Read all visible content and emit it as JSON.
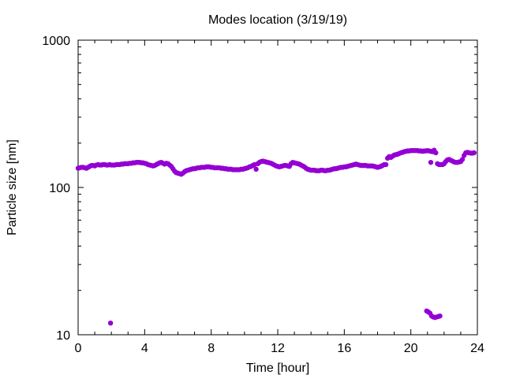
{
  "chart_data": {
    "type": "scatter",
    "title": "Modes location (3/19/19)",
    "xlabel": "Time [hour]",
    "ylabel": "Particle size [nm]",
    "xlim": [
      0,
      24
    ],
    "ylim": [
      10,
      1000
    ],
    "yscale": "log",
    "x_ticks": [
      0,
      4,
      8,
      12,
      16,
      20,
      24
    ],
    "y_ticks": [
      10,
      100,
      1000
    ],
    "x_tick_labels": [
      "0",
      "4",
      "8",
      "12",
      "16",
      "20",
      "24"
    ],
    "y_tick_labels": [
      "10",
      "100",
      "1000"
    ],
    "grid": false,
    "marker_color": "#9400d3",
    "series": [
      {
        "points": [
          [
            0.0,
            135
          ],
          [
            0.1,
            136
          ],
          [
            0.2,
            137
          ],
          [
            0.3,
            137
          ],
          [
            0.4,
            136
          ],
          [
            0.5,
            135
          ],
          [
            0.6,
            137
          ],
          [
            0.7,
            139
          ],
          [
            0.8,
            141
          ],
          [
            0.9,
            141
          ],
          [
            1.0,
            140
          ],
          [
            1.1,
            142
          ],
          [
            1.2,
            143
          ],
          [
            1.3,
            142
          ],
          [
            1.4,
            142
          ],
          [
            1.5,
            143
          ],
          [
            1.6,
            143
          ],
          [
            1.7,
            142
          ],
          [
            1.8,
            142
          ],
          [
            1.9,
            143
          ],
          [
            2.0,
            142
          ],
          [
            2.1,
            142
          ],
          [
            2.2,
            142
          ],
          [
            2.3,
            143
          ],
          [
            2.4,
            143
          ],
          [
            2.5,
            143
          ],
          [
            2.6,
            144
          ],
          [
            2.7,
            144
          ],
          [
            2.8,
            145
          ],
          [
            2.9,
            145
          ],
          [
            3.0,
            145
          ],
          [
            3.1,
            146
          ],
          [
            3.2,
            146
          ],
          [
            3.3,
            147
          ],
          [
            3.4,
            147
          ],
          [
            3.5,
            148
          ],
          [
            3.6,
            148
          ],
          [
            3.7,
            148
          ],
          [
            3.8,
            147
          ],
          [
            3.9,
            147
          ],
          [
            4.0,
            146
          ],
          [
            4.1,
            145
          ],
          [
            4.2,
            143
          ],
          [
            4.3,
            142
          ],
          [
            4.4,
            141
          ],
          [
            4.5,
            140
          ],
          [
            4.6,
            141
          ],
          [
            4.7,
            143
          ],
          [
            4.8,
            145
          ],
          [
            4.9,
            147
          ],
          [
            5.0,
            148
          ],
          [
            5.1,
            146
          ],
          [
            5.2,
            144
          ],
          [
            5.3,
            146
          ],
          [
            5.4,
            145
          ],
          [
            5.5,
            142
          ],
          [
            5.6,
            139
          ],
          [
            5.7,
            134
          ],
          [
            5.8,
            129
          ],
          [
            5.9,
            126
          ],
          [
            6.0,
            125
          ],
          [
            6.1,
            124
          ],
          [
            6.2,
            123
          ],
          [
            6.3,
            125
          ],
          [
            6.4,
            128
          ],
          [
            6.5,
            130
          ],
          [
            6.6,
            131
          ],
          [
            6.7,
            132
          ],
          [
            6.8,
            133
          ],
          [
            6.9,
            134
          ],
          [
            7.0,
            134
          ],
          [
            7.1,
            135
          ],
          [
            7.2,
            136
          ],
          [
            7.3,
            136
          ],
          [
            7.4,
            137
          ],
          [
            7.5,
            137
          ],
          [
            7.6,
            137
          ],
          [
            7.7,
            138
          ],
          [
            7.8,
            138
          ],
          [
            7.9,
            138
          ],
          [
            8.0,
            137
          ],
          [
            8.1,
            137
          ],
          [
            8.2,
            136
          ],
          [
            8.3,
            136
          ],
          [
            8.4,
            136
          ],
          [
            8.5,
            136
          ],
          [
            8.6,
            135
          ],
          [
            8.7,
            135
          ],
          [
            8.8,
            134
          ],
          [
            8.9,
            134
          ],
          [
            9.0,
            133
          ],
          [
            9.1,
            133
          ],
          [
            9.2,
            133
          ],
          [
            9.3,
            132
          ],
          [
            9.4,
            132
          ],
          [
            9.5,
            132
          ],
          [
            9.6,
            132
          ],
          [
            9.7,
            132
          ],
          [
            9.8,
            133
          ],
          [
            9.9,
            133
          ],
          [
            10.0,
            134
          ],
          [
            10.1,
            135
          ],
          [
            10.2,
            136
          ],
          [
            10.3,
            138
          ],
          [
            10.4,
            139
          ],
          [
            10.5,
            141
          ],
          [
            10.6,
            143
          ],
          [
            10.7,
            133
          ],
          [
            10.8,
            145
          ],
          [
            10.9,
            148
          ],
          [
            11.0,
            150
          ],
          [
            11.1,
            151
          ],
          [
            11.2,
            150
          ],
          [
            11.3,
            149
          ],
          [
            11.4,
            148
          ],
          [
            11.5,
            147
          ],
          [
            11.6,
            146
          ],
          [
            11.7,
            144
          ],
          [
            11.8,
            142
          ],
          [
            11.9,
            140
          ],
          [
            12.0,
            139
          ],
          [
            12.1,
            138
          ],
          [
            12.2,
            139
          ],
          [
            12.3,
            140
          ],
          [
            12.4,
            141
          ],
          [
            12.5,
            141
          ],
          [
            12.6,
            140
          ],
          [
            12.7,
            139
          ],
          [
            12.8,
            145
          ],
          [
            12.9,
            148
          ],
          [
            13.0,
            147
          ],
          [
            13.1,
            146
          ],
          [
            13.2,
            145
          ],
          [
            13.3,
            144
          ],
          [
            13.4,
            142
          ],
          [
            13.5,
            140
          ],
          [
            13.6,
            138
          ],
          [
            13.7,
            135
          ],
          [
            13.8,
            133
          ],
          [
            13.9,
            132
          ],
          [
            14.0,
            131
          ],
          [
            14.1,
            131
          ],
          [
            14.2,
            131
          ],
          [
            14.3,
            130
          ],
          [
            14.4,
            130
          ],
          [
            14.5,
            130
          ],
          [
            14.6,
            131
          ],
          [
            14.7,
            131
          ],
          [
            14.8,
            130
          ],
          [
            14.9,
            130
          ],
          [
            15.0,
            131
          ],
          [
            15.1,
            131
          ],
          [
            15.2,
            132
          ],
          [
            15.3,
            133
          ],
          [
            15.4,
            134
          ],
          [
            15.5,
            134
          ],
          [
            15.6,
            135
          ],
          [
            15.7,
            136
          ],
          [
            15.8,
            137
          ],
          [
            15.9,
            137
          ],
          [
            16.0,
            138
          ],
          [
            16.1,
            138
          ],
          [
            16.2,
            139
          ],
          [
            16.3,
            140
          ],
          [
            16.4,
            141
          ],
          [
            16.5,
            142
          ],
          [
            16.6,
            143
          ],
          [
            16.7,
            144
          ],
          [
            16.8,
            143
          ],
          [
            16.9,
            142
          ],
          [
            17.0,
            141
          ],
          [
            17.1,
            141
          ],
          [
            17.2,
            141
          ],
          [
            17.3,
            141
          ],
          [
            17.4,
            140
          ],
          [
            17.5,
            140
          ],
          [
            17.6,
            140
          ],
          [
            17.7,
            140
          ],
          [
            17.8,
            139
          ],
          [
            17.9,
            138
          ],
          [
            18.0,
            137
          ],
          [
            18.1,
            138
          ],
          [
            18.2,
            139
          ],
          [
            18.3,
            141
          ],
          [
            18.4,
            143
          ],
          [
            18.5,
            143
          ],
          [
            18.6,
            158
          ],
          [
            18.7,
            162
          ],
          [
            18.8,
            160
          ],
          [
            18.9,
            163
          ],
          [
            19.0,
            166
          ],
          [
            19.1,
            167
          ],
          [
            19.2,
            168
          ],
          [
            19.3,
            170
          ],
          [
            19.4,
            172
          ],
          [
            19.5,
            173
          ],
          [
            19.6,
            175
          ],
          [
            19.7,
            176
          ],
          [
            19.8,
            177
          ],
          [
            19.9,
            177
          ],
          [
            20.0,
            178
          ],
          [
            20.1,
            178
          ],
          [
            20.2,
            178
          ],
          [
            20.3,
            178
          ],
          [
            20.4,
            178
          ],
          [
            20.5,
            177
          ],
          [
            20.6,
            177
          ],
          [
            20.7,
            176
          ],
          [
            20.8,
            177
          ],
          [
            20.9,
            177
          ],
          [
            21.0,
            178
          ],
          [
            21.1,
            177
          ],
          [
            21.2,
            176
          ],
          [
            21.3,
            175
          ],
          [
            21.4,
            179
          ],
          [
            21.5,
            172
          ],
          [
            21.2,
            148
          ],
          [
            21.6,
            145
          ],
          [
            21.7,
            143
          ],
          [
            21.8,
            143
          ],
          [
            21.9,
            143
          ],
          [
            22.0,
            145
          ],
          [
            22.1,
            150
          ],
          [
            22.2,
            154
          ],
          [
            22.3,
            155
          ],
          [
            22.4,
            153
          ],
          [
            22.5,
            151
          ],
          [
            22.6,
            149
          ],
          [
            22.7,
            148
          ],
          [
            22.8,
            148
          ],
          [
            22.9,
            149
          ],
          [
            23.0,
            150
          ],
          [
            23.1,
            155
          ],
          [
            23.2,
            165
          ],
          [
            23.3,
            172
          ],
          [
            23.4,
            173
          ],
          [
            23.5,
            172
          ],
          [
            23.6,
            171
          ],
          [
            23.7,
            171
          ],
          [
            23.8,
            172
          ],
          [
            1.95,
            12
          ],
          [
            20.95,
            14.5
          ],
          [
            21.05,
            14.3
          ],
          [
            21.15,
            14.0
          ],
          [
            21.25,
            13.4
          ],
          [
            21.35,
            13.2
          ],
          [
            21.45,
            13.1
          ],
          [
            21.55,
            13.2
          ],
          [
            21.65,
            13.3
          ],
          [
            21.75,
            13.4
          ]
        ]
      }
    ]
  }
}
